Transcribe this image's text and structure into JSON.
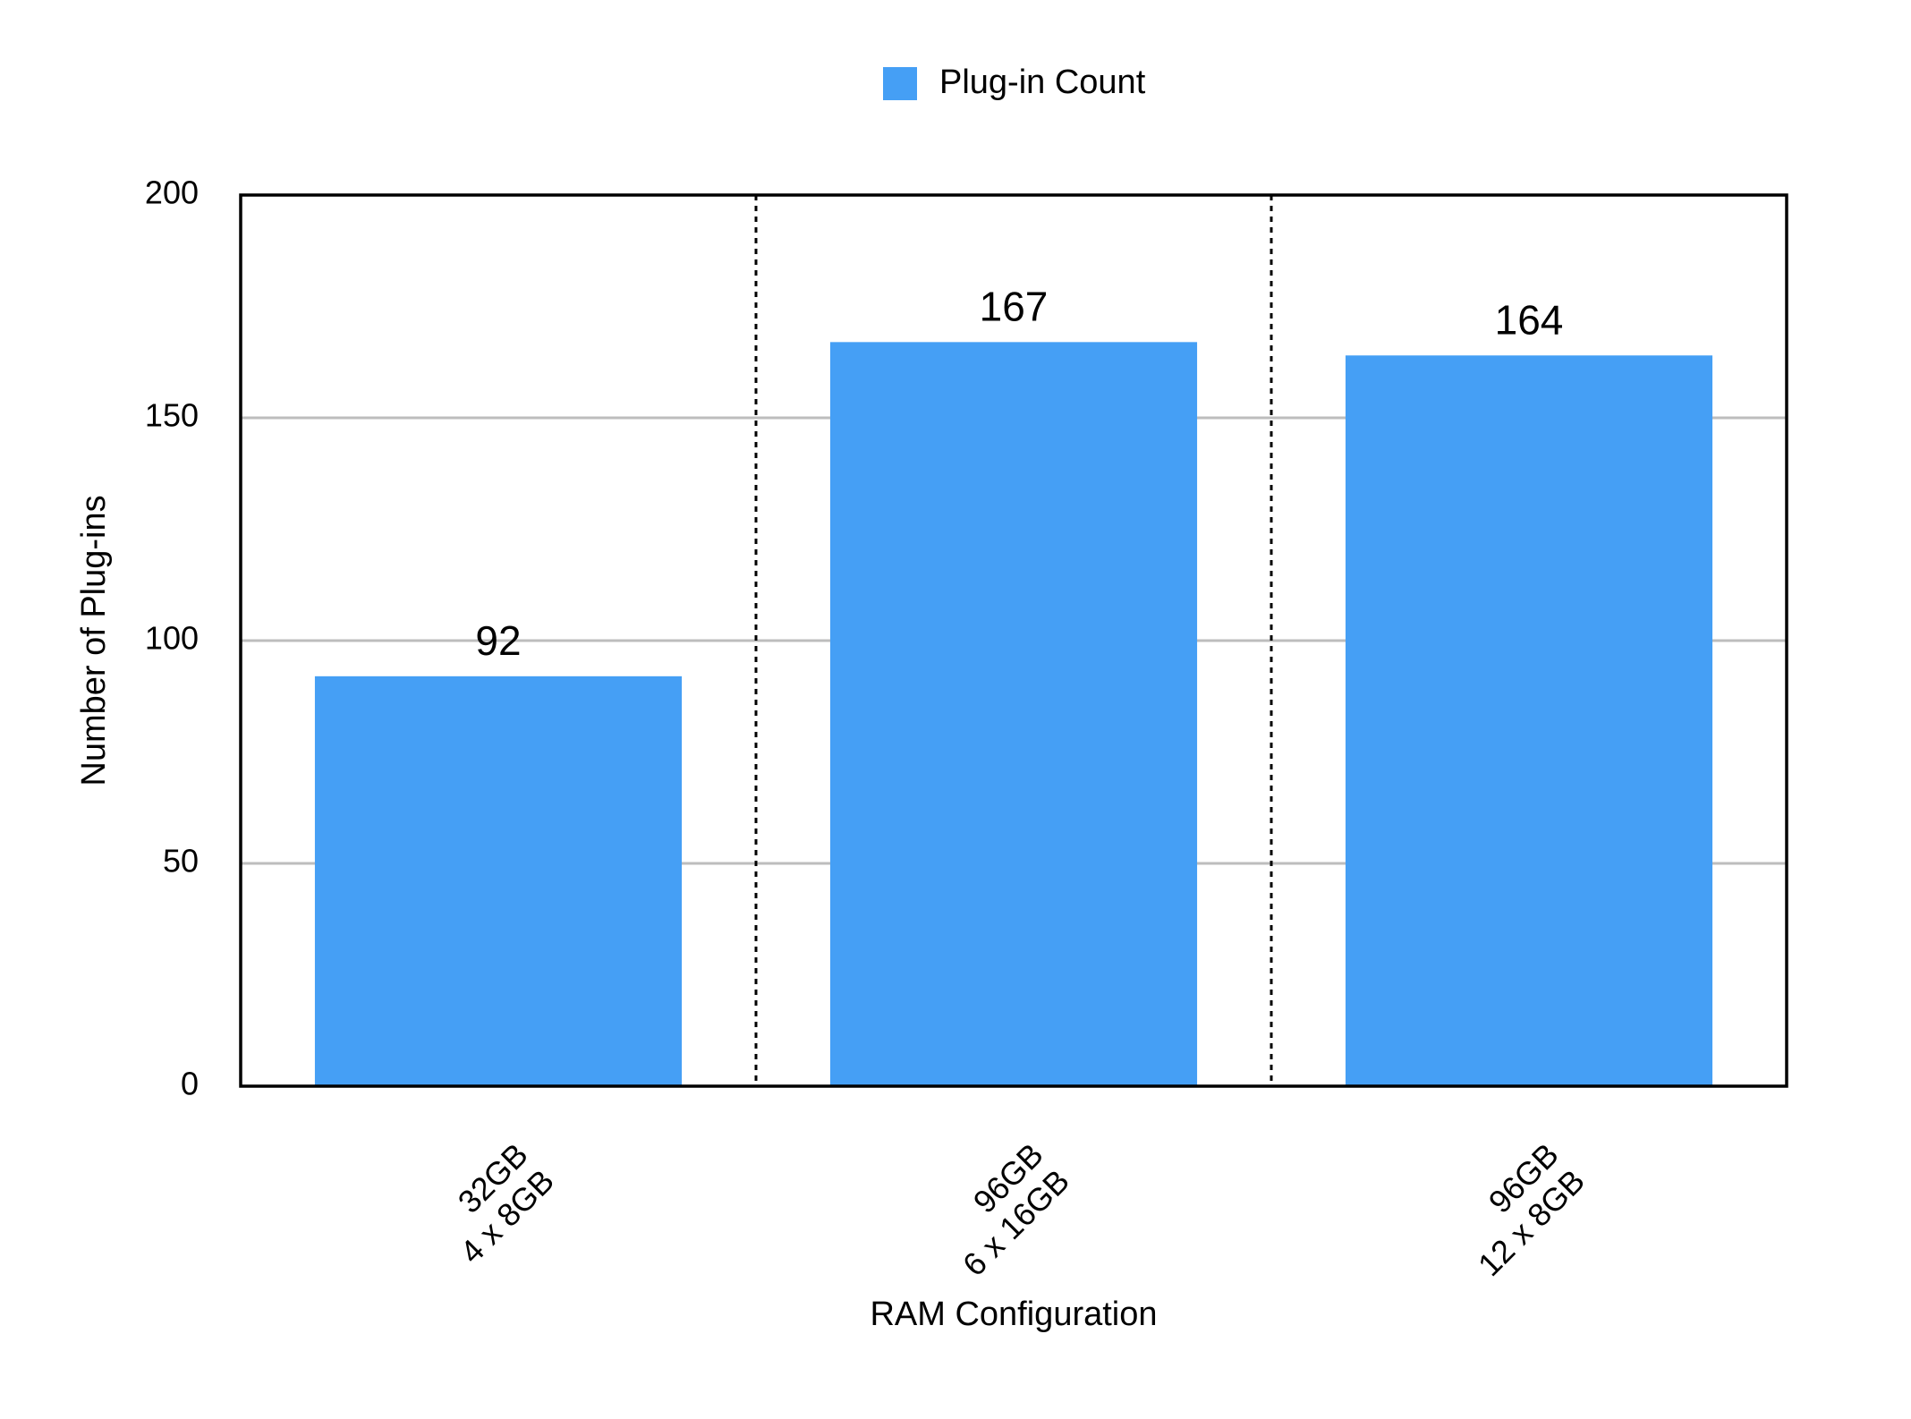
{
  "chart_data": {
    "type": "bar",
    "legend_name": "Plug-in Count",
    "ylabel": "Number of Plug-ins",
    "xlabel": "RAM Configuration",
    "categories": [
      [
        "32GB",
        "4 x 8GB"
      ],
      [
        "96GB",
        "6 x 16GB"
      ],
      [
        "96GB",
        "12 x 8GB"
      ]
    ],
    "values": [
      92,
      167,
      164
    ],
    "color": "#459ff5",
    "ylim": [
      0,
      200
    ],
    "yticks": [
      0,
      50,
      100,
      150,
      200
    ],
    "grid": true,
    "legend": "top"
  }
}
